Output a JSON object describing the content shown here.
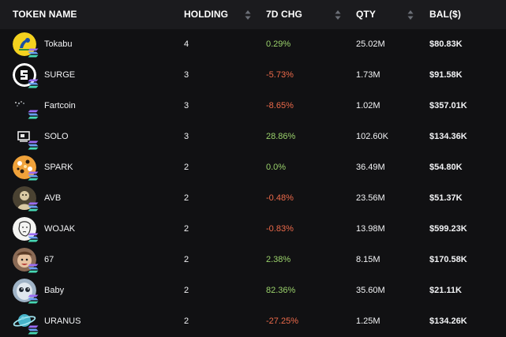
{
  "header": {
    "token_name": "TOKEN NAME",
    "holding": "HOLDING",
    "chg": "7D CHG",
    "qty": "QTY",
    "bal": "BAL($)"
  },
  "colors": {
    "positive": "#9ad16b",
    "negative": "#ec6a4a",
    "header_bg": "#1b1b1e",
    "row_bg": "#111113"
  },
  "rows": [
    {
      "name": "Tokabu",
      "holding": "4",
      "chg": "0.29%",
      "trend": "positive",
      "qty": "25.02M",
      "bal": "$80.83K",
      "icon": "tokabu-icon"
    },
    {
      "name": "SURGE",
      "holding": "3",
      "chg": "-5.73%",
      "trend": "negative",
      "qty": "1.73M",
      "bal": "$91.58K",
      "icon": "surge-icon"
    },
    {
      "name": "Fartcoin",
      "holding": "3",
      "chg": "-8.65%",
      "trend": "negative",
      "qty": "1.02M",
      "bal": "$357.01K",
      "icon": "fartcoin-icon"
    },
    {
      "name": "SOLO",
      "holding": "3",
      "chg": "28.86%",
      "trend": "positive",
      "qty": "102.60K",
      "bal": "$134.36K",
      "icon": "solo-icon"
    },
    {
      "name": "SPARK",
      "holding": "2",
      "chg": "0.0%",
      "trend": "positive",
      "qty": "36.49M",
      "bal": "$54.80K",
      "icon": "spark-icon"
    },
    {
      "name": "AVB",
      "holding": "2",
      "chg": "-0.48%",
      "trend": "negative",
      "qty": "23.56M",
      "bal": "$51.37K",
      "icon": "avb-icon"
    },
    {
      "name": "WOJAK",
      "holding": "2",
      "chg": "-0.83%",
      "trend": "negative",
      "qty": "13.98M",
      "bal": "$599.23K",
      "icon": "wojak-icon"
    },
    {
      "name": "67",
      "holding": "2",
      "chg": "2.38%",
      "trend": "positive",
      "qty": "8.15M",
      "bal": "$170.58K",
      "icon": "token-67-icon"
    },
    {
      "name": "Baby",
      "holding": "2",
      "chg": "82.36%",
      "trend": "positive",
      "qty": "35.60M",
      "bal": "$21.11K",
      "icon": "baby-icon"
    },
    {
      "name": "URANUS",
      "holding": "2",
      "chg": "-27.25%",
      "trend": "negative",
      "qty": "1.25M",
      "bal": "$134.26K",
      "icon": "uranus-icon"
    }
  ]
}
